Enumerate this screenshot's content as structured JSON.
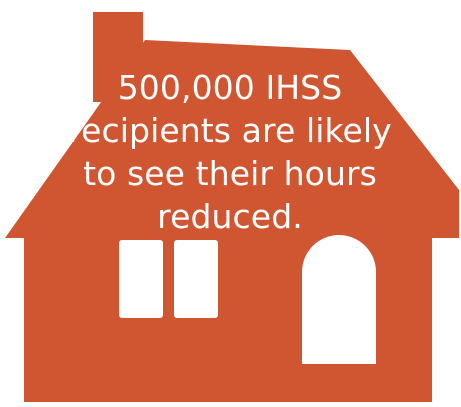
{
  "colors": {
    "house": "#cf5630",
    "openings": "#ffffff",
    "text": "#ffffff",
    "background": "#ffffff"
  },
  "icons": {
    "house": "house-icon",
    "chimney": "chimney-icon",
    "window": "window-icon",
    "door": "door-icon"
  },
  "message": {
    "lines": [
      "500,000 IHSS",
      "recipients are likely",
      "to see their hours",
      "reduced."
    ]
  }
}
